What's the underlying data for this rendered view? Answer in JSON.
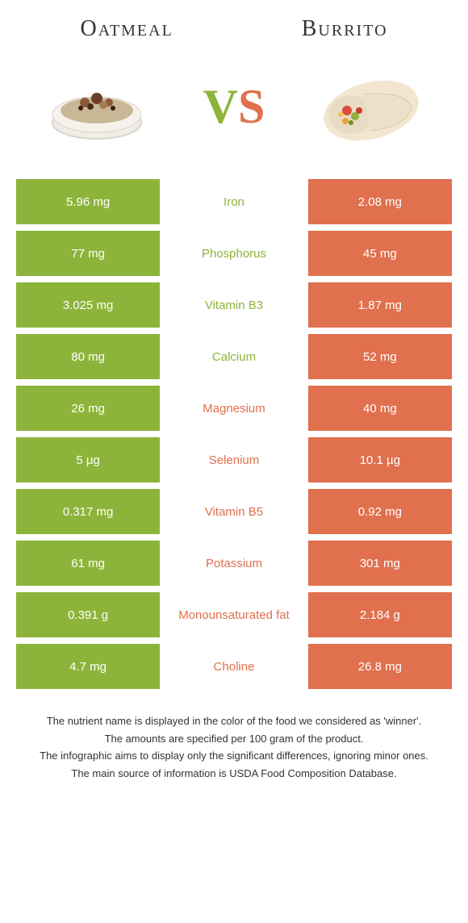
{
  "colors": {
    "left": "#8db43a",
    "right": "#e0704e",
    "text": "#333333",
    "white": "#ffffff"
  },
  "header": {
    "left_title": "Oatmeal",
    "right_title": "Burrito",
    "vs_v": "V",
    "vs_s": "S"
  },
  "table": {
    "rows": [
      {
        "left": "5.96 mg",
        "label": "Iron",
        "right": "2.08 mg",
        "winner": "left"
      },
      {
        "left": "77 mg",
        "label": "Phosphorus",
        "right": "45 mg",
        "winner": "left"
      },
      {
        "left": "3.025 mg",
        "label": "Vitamin B3",
        "right": "1.87 mg",
        "winner": "left"
      },
      {
        "left": "80 mg",
        "label": "Calcium",
        "right": "52 mg",
        "winner": "left"
      },
      {
        "left": "26 mg",
        "label": "Magnesium",
        "right": "40 mg",
        "winner": "right"
      },
      {
        "left": "5 µg",
        "label": "Selenium",
        "right": "10.1 µg",
        "winner": "right"
      },
      {
        "left": "0.317 mg",
        "label": "Vitamin B5",
        "right": "0.92 mg",
        "winner": "right"
      },
      {
        "left": "61 mg",
        "label": "Potassium",
        "right": "301 mg",
        "winner": "right"
      },
      {
        "left": "0.391 g",
        "label": "Monounsaturated fat",
        "right": "2.184 g",
        "winner": "right"
      },
      {
        "left": "4.7 mg",
        "label": "Choline",
        "right": "26.8 mg",
        "winner": "right"
      }
    ]
  },
  "footnotes": [
    "The nutrient name is displayed in the color of the food we considered as 'winner'.",
    "The amounts are specified per 100 gram of the product.",
    "The infographic aims to display only the significant differences, ignoring minor ones.",
    "The main source of information is USDA Food Composition Database."
  ]
}
